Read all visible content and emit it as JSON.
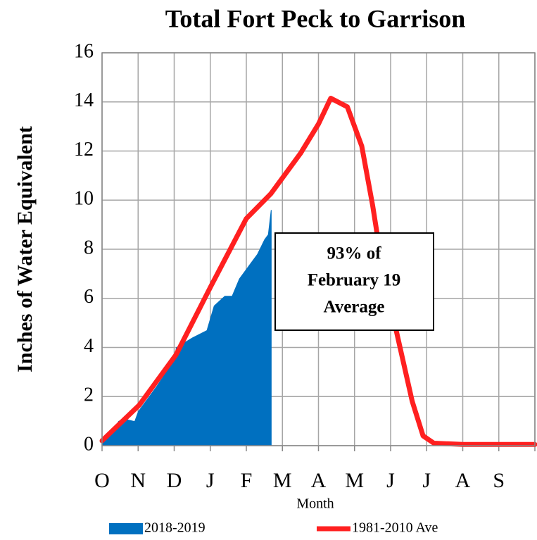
{
  "chart_data": {
    "type": "line",
    "title": "Total Fort Peck to Garrison",
    "y_label": "Inches of Water Equivalent",
    "x_label": "Month",
    "annotation": [
      "93% of",
      "February 19",
      "Average"
    ],
    "xlim": [
      0,
      12
    ],
    "xticks": [
      {
        "value": 0,
        "label": "O"
      },
      {
        "value": 1,
        "label": "N"
      },
      {
        "value": 2,
        "label": "D"
      },
      {
        "value": 3,
        "label": "J"
      },
      {
        "value": 4,
        "label": "F"
      },
      {
        "value": 5,
        "label": "M"
      },
      {
        "value": 6,
        "label": "A"
      },
      {
        "value": 7,
        "label": "M"
      },
      {
        "value": 8,
        "label": "J"
      },
      {
        "value": 9,
        "label": "J"
      },
      {
        "value": 10,
        "label": "A"
      },
      {
        "value": 11,
        "label": "S"
      },
      {
        "value": 12,
        "label": ""
      }
    ],
    "ylim": [
      0,
      16
    ],
    "yticks": [
      0,
      2,
      4,
      6,
      8,
      10,
      12,
      14,
      16
    ],
    "grid": true,
    "series": [
      {
        "name": "2018-2019",
        "color": "#0070c0",
        "style": "area",
        "x": [
          0,
          0.3,
          0.45,
          0.6,
          0.9,
          1.0,
          1.5,
          2.0,
          2.05,
          2.5,
          2.9,
          3.1,
          3.4,
          3.6,
          3.8,
          4.1,
          4.3,
          4.5,
          4.6,
          4.68,
          4.7
        ],
        "values": [
          0.1,
          0.5,
          1.0,
          1.1,
          1.0,
          1.4,
          2.4,
          3.5,
          4.0,
          4.4,
          4.7,
          5.7,
          6.1,
          6.1,
          6.8,
          7.4,
          7.8,
          8.4,
          8.6,
          9.6,
          9.6
        ]
      },
      {
        "name": "1981-2010 Ave",
        "color": "#ff2020",
        "style": "line",
        "x": [
          0,
          1.03,
          2.05,
          3.02,
          4.0,
          4.68,
          5.5,
          6.0,
          6.34,
          6.8,
          7.2,
          7.5,
          7.8,
          8.2,
          8.6,
          8.9,
          9.2,
          10,
          11,
          12
        ],
        "values": [
          0.2,
          1.65,
          3.7,
          6.5,
          9.25,
          10.26,
          11.9,
          13.1,
          14.15,
          13.8,
          12.2,
          9.8,
          7.0,
          4.4,
          1.8,
          0.4,
          0.1,
          0.05,
          0.05,
          0.05
        ]
      }
    ]
  }
}
